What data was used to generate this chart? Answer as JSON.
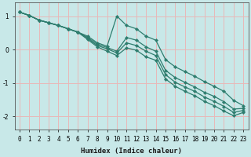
{
  "xlabel": "Humidex (Indice chaleur)",
  "x_ticks": [
    0,
    1,
    2,
    3,
    4,
    5,
    6,
    7,
    8,
    9,
    10,
    11,
    12,
    13,
    14,
    15,
    16,
    17,
    18,
    19,
    20,
    21,
    22,
    23
  ],
  "ylim": [
    -2.4,
    1.4
  ],
  "xlim": [
    -0.5,
    23.5
  ],
  "yticks": [
    -2,
    -1,
    0,
    1
  ],
  "background_color": "#c8e8e8",
  "line_color": "#2e7d6e",
  "grid_color": "#e8b8b8",
  "lines": [
    [
      1.12,
      1.02,
      0.88,
      0.8,
      0.72,
      0.62,
      0.52,
      0.4,
      0.2,
      0.1,
      1.0,
      0.72,
      0.62,
      0.4,
      0.28,
      -0.3,
      -0.52,
      -0.66,
      -0.8,
      -0.96,
      -1.1,
      -1.25,
      -1.52,
      -1.68
    ],
    [
      1.12,
      1.02,
      0.88,
      0.8,
      0.72,
      0.62,
      0.52,
      0.36,
      0.16,
      0.06,
      -0.05,
      0.36,
      0.28,
      0.08,
      -0.05,
      -0.62,
      -0.84,
      -0.98,
      -1.12,
      -1.28,
      -1.4,
      -1.56,
      -1.78,
      -1.76
    ],
    [
      1.12,
      1.02,
      0.88,
      0.8,
      0.72,
      0.62,
      0.52,
      0.33,
      0.12,
      0.02,
      -0.1,
      0.2,
      0.12,
      -0.05,
      -0.18,
      -0.75,
      -0.98,
      -1.12,
      -1.25,
      -1.42,
      -1.55,
      -1.7,
      -1.88,
      -1.82
    ],
    [
      1.12,
      1.02,
      0.88,
      0.8,
      0.72,
      0.62,
      0.52,
      0.3,
      0.08,
      -0.05,
      -0.18,
      0.05,
      -0.02,
      -0.22,
      -0.32,
      -0.88,
      -1.1,
      -1.25,
      -1.38,
      -1.55,
      -1.68,
      -1.84,
      -1.98,
      -1.88
    ]
  ]
}
